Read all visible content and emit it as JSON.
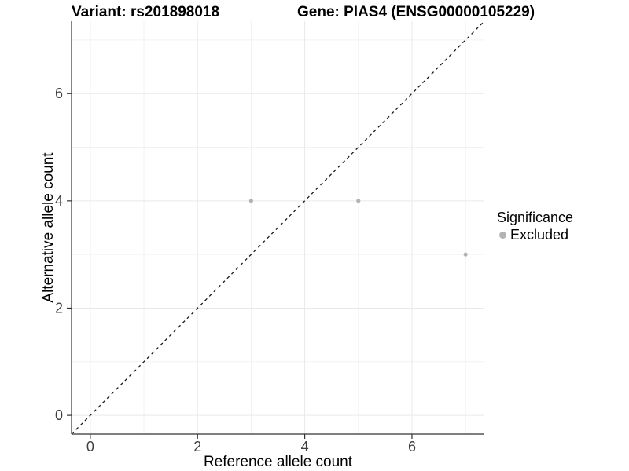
{
  "header": {
    "variant_title": "Variant: rs201898018",
    "gene_title": "Gene: PIAS4 (ENSG00000105229)"
  },
  "legend": {
    "title": "Significance",
    "items": [
      {
        "label": "Excluded",
        "color": "#b3b3b3"
      }
    ],
    "position": "right"
  },
  "chart_data": {
    "type": "scatter",
    "title": "Variant: rs201898018   Gene: PIAS4 (ENSG00000105229)",
    "xlabel": "Reference allele count",
    "ylabel": "Alternative allele count",
    "xlim": [
      -0.35,
      7.35
    ],
    "ylim": [
      -0.35,
      7.35
    ],
    "x_major_ticks": [
      0,
      2,
      4,
      6
    ],
    "y_major_ticks": [
      0,
      2,
      4,
      6
    ],
    "x_minor_gridlines": [
      1,
      3,
      5,
      7
    ],
    "y_minor_gridlines": [
      1,
      3,
      5,
      7
    ],
    "grid": true,
    "series": [
      {
        "name": "Excluded",
        "color": "#b3b3b3",
        "points": [
          {
            "x": 3,
            "y": 4
          },
          {
            "x": 5,
            "y": 4
          },
          {
            "x": 7,
            "y": 3
          }
        ]
      }
    ],
    "reference_line": {
      "kind": "identity",
      "slope": 1,
      "intercept": 0,
      "style": "dashed",
      "color": "#1a1a1a"
    },
    "legend_position": "right",
    "colors": {
      "background": "#ffffff",
      "grid_major": "#e9e9e9",
      "grid_minor": "#f2f2f2",
      "axis_line": "#333333",
      "tick_label": "#404040",
      "point": "#b3b3b3"
    }
  }
}
